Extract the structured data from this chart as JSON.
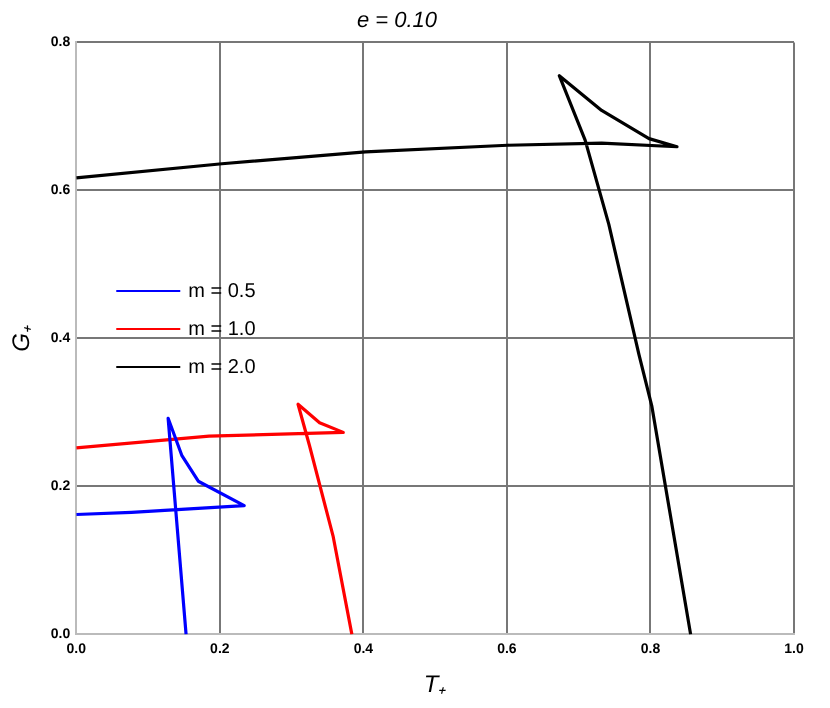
{
  "chart_data": {
    "type": "line",
    "title": "e = 0.10",
    "xlabel": "T₊",
    "ylabel": "G₊",
    "xlim": [
      0,
      1
    ],
    "ylim": [
      0,
      0.8
    ],
    "xticks": [
      {
        "value": 0,
        "label": "0.0"
      },
      {
        "value": 0.2,
        "label": "0.2"
      },
      {
        "value": 0.4,
        "label": "0.4"
      },
      {
        "value": 0.6,
        "label": "0.6"
      },
      {
        "value": 0.8,
        "label": "0.8"
      },
      {
        "value": 1,
        "label": "1.0"
      }
    ],
    "yticks": [
      {
        "value": 0,
        "label": "0.0"
      },
      {
        "value": 0.2,
        "label": "0.2"
      },
      {
        "value": 0.4,
        "label": "0.4"
      },
      {
        "value": 0.6,
        "label": "0.6"
      },
      {
        "value": 0.8,
        "label": "0.8"
      }
    ],
    "grid": true,
    "legend": "left",
    "marker": "none",
    "line_style": "solid",
    "series": [
      {
        "name": "m = 0.5",
        "color": "#0000ff",
        "x": [
          0,
          0.077,
          0.234,
          0.17,
          0.147,
          0.128,
          0.153
        ],
        "values": [
          0.162,
          0.165,
          0.174,
          0.207,
          0.242,
          0.292,
          0
        ]
      },
      {
        "name": "m = 1.0",
        "color": "#ff0000",
        "x": [
          0,
          0.185,
          0.372,
          0.339,
          0.309,
          0.325,
          0.358,
          0.384
        ],
        "values": [
          0.252,
          0.268,
          0.273,
          0.286,
          0.311,
          0.255,
          0.132,
          0
        ]
      },
      {
        "name": "m = 2.0",
        "color": "#000000",
        "x": [
          0,
          0.203,
          0.403,
          0.601,
          0.732,
          0.837,
          0.798,
          0.732,
          0.673,
          0.709,
          0.742,
          0.784,
          0.802,
          0.856
        ],
        "values": [
          0.617,
          0.636,
          0.652,
          0.661,
          0.664,
          0.659,
          0.67,
          0.708,
          0.755,
          0.668,
          0.554,
          0.378,
          0.308,
          0
        ]
      }
    ]
  }
}
